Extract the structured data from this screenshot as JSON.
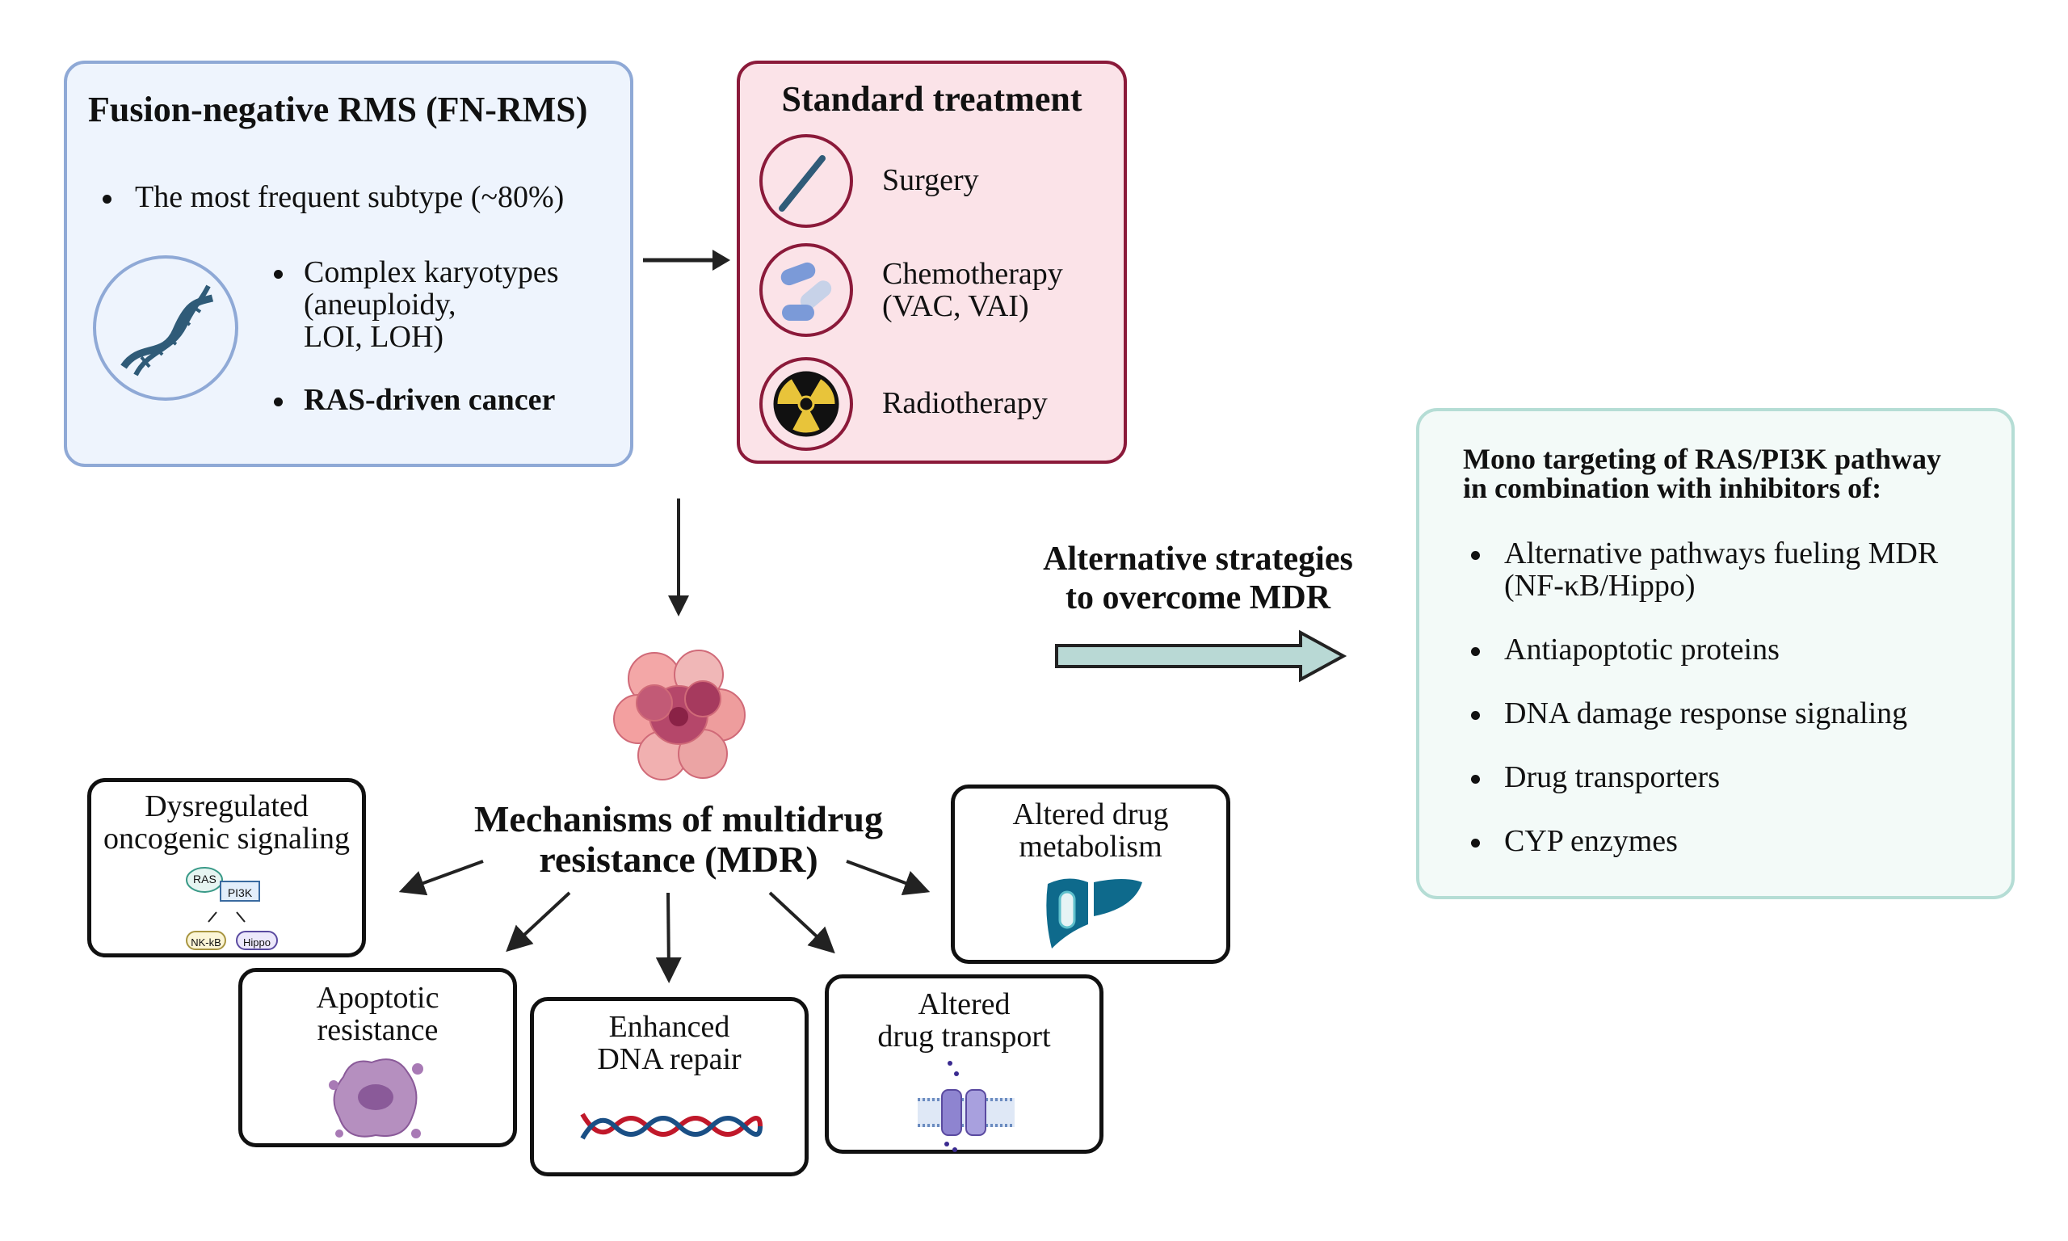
{
  "fn_rms": {
    "title": "Fusion-negative RMS (FN-RMS)",
    "bullets": [
      "The most frequent subtype (~80%)",
      "Complex karyotypes",
      "(aneuploidy,",
      "LOI, LOH)",
      "RAS-driven cancer"
    ],
    "icon": "dna-icon"
  },
  "treatment": {
    "title": "Standard treatment",
    "items": [
      {
        "label": "Surgery",
        "icon": "scalpel-icon"
      },
      {
        "label": "Chemotherapy",
        "label2": "(VAC, VAI)",
        "icon": "pills-icon"
      },
      {
        "label": "Radiotherapy",
        "icon": "radiation-icon"
      }
    ]
  },
  "mdr": {
    "title_line1": "Mechanisms of multidrug",
    "title_line2": "resistance (MDR)",
    "mechanisms": [
      {
        "line1": "Dysregulated",
        "line2": "oncogenic signaling"
      },
      {
        "line1": "Apoptotic",
        "line2": "resistance"
      },
      {
        "line1": "Enhanced",
        "line2": "DNA repair"
      },
      {
        "line1": "Altered",
        "line2": "drug transport"
      },
      {
        "line1": "Altered drug",
        "line2": "metabolism"
      }
    ],
    "signaling_nodes": [
      "RAS",
      "PI3K",
      "NK-kB",
      "Hippo"
    ]
  },
  "strategies": {
    "line1": "Alternative strategies",
    "line2": "to overcome MDR"
  },
  "targeting": {
    "title_line1": "Mono targeting of RAS/PI3K pathway",
    "title_line2": "in combination with inhibitors of:",
    "bullets": [
      {
        "line1": "Alternative pathways fueling MDR",
        "line2": "(NF-κB/Hippo)"
      },
      {
        "line1": "Antiapoptotic proteins"
      },
      {
        "line1": "DNA damage response signaling"
      },
      {
        "line1": "Drug transporters"
      },
      {
        "line1": "CYP enzymes"
      }
    ]
  },
  "colors": {
    "fn_fill": "#eef4fd",
    "fn_border": "#8fa9d6",
    "tx_fill": "#fbe3e8",
    "tx_border": "#8b1a3a",
    "target_fill": "#f3faf8",
    "target_border": "#b5ddd5",
    "arrow_fill": "#b9d9d5"
  }
}
